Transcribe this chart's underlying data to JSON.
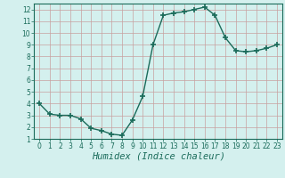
{
  "x": [
    0,
    1,
    2,
    3,
    4,
    5,
    6,
    7,
    8,
    9,
    10,
    11,
    12,
    13,
    14,
    15,
    16,
    17,
    18,
    19,
    20,
    21,
    22,
    23
  ],
  "y": [
    4.0,
    3.1,
    3.0,
    3.0,
    2.7,
    1.9,
    1.7,
    1.4,
    1.3,
    2.6,
    4.6,
    9.0,
    11.5,
    11.7,
    11.8,
    12.0,
    12.2,
    11.5,
    9.6,
    8.5,
    8.4,
    8.5,
    8.7,
    9.0
  ],
  "line_color": "#1a6b5a",
  "marker": "+",
  "marker_size": 4,
  "xlabel": "Humidex (Indice chaleur)",
  "xlim": [
    -0.5,
    23.5
  ],
  "ylim": [
    1,
    12.5
  ],
  "yticks": [
    1,
    2,
    3,
    4,
    5,
    6,
    7,
    8,
    9,
    10,
    11,
    12
  ],
  "xticks": [
    0,
    1,
    2,
    3,
    4,
    5,
    6,
    7,
    8,
    9,
    10,
    11,
    12,
    13,
    14,
    15,
    16,
    17,
    18,
    19,
    20,
    21,
    22,
    23
  ],
  "bg_color": "#d4f0ee",
  "grid_color_major": "#c8a0a0",
  "tick_fontsize": 5.5,
  "xlabel_fontsize": 7.5,
  "linewidth": 1.0
}
